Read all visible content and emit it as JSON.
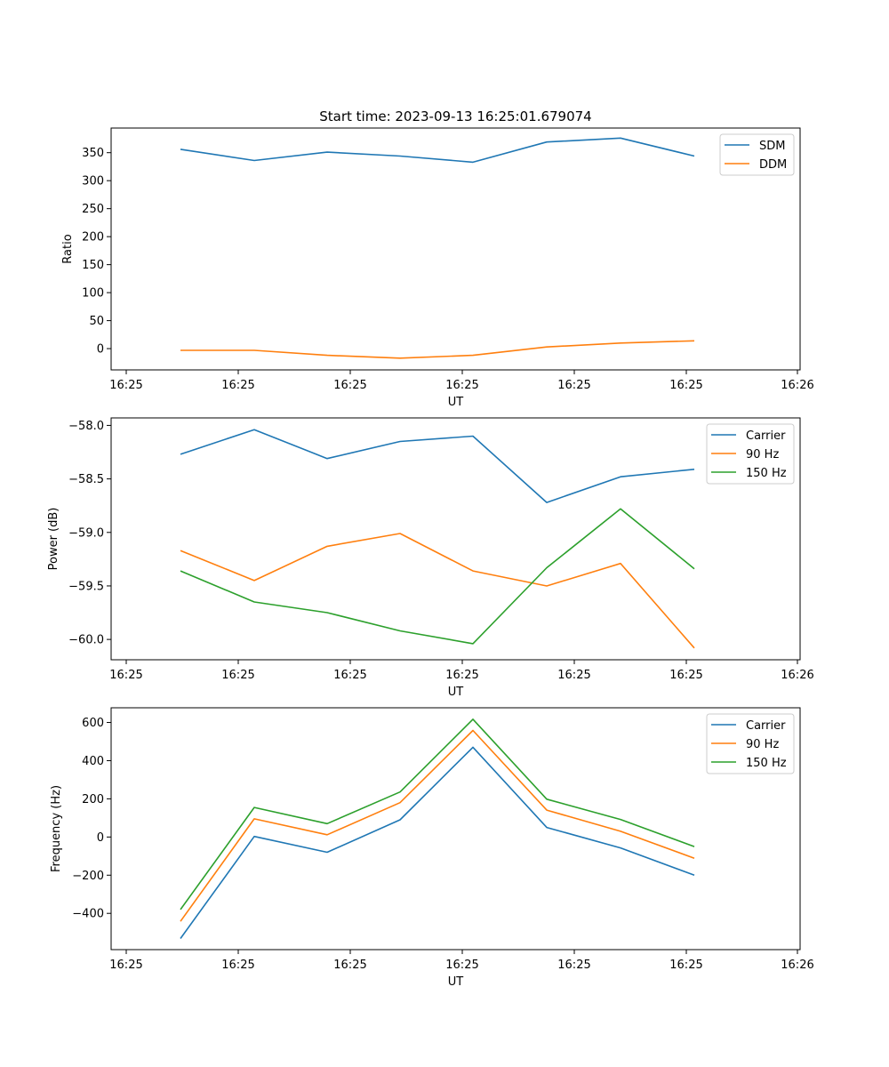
{
  "chart_data": [
    {
      "type": "line",
      "title": "Start time: 2023-09-13 16:25:01.679074",
      "xlabel": "UT",
      "ylabel": "Ratio",
      "x_tick_labels": [
        "16:25",
        "16:25",
        "16:25",
        "16:25",
        "16:25",
        "16:25",
        "16:25"
      ],
      "x_end_tick_label": "16:26",
      "yticks": [
        0,
        50,
        100,
        150,
        200,
        250,
        300,
        350
      ],
      "ylim": [
        -38,
        394
      ],
      "legend": "top-right",
      "series": [
        {
          "name": "SDM",
          "color": "#1f77b4",
          "values": [
            356,
            336,
            351,
            344,
            333,
            369,
            376,
            344
          ]
        },
        {
          "name": "DDM",
          "color": "#ff7f0e",
          "values": [
            -3,
            -3,
            -12,
            -17,
            -12,
            3,
            10,
            14
          ]
        }
      ]
    },
    {
      "type": "line",
      "title": "",
      "xlabel": "UT",
      "ylabel": "Power (dB)",
      "x_tick_labels": [
        "16:25",
        "16:25",
        "16:25",
        "16:25",
        "16:25",
        "16:25",
        "16:25"
      ],
      "x_end_tick_label": "16:26",
      "yticks": [
        -60.0,
        -59.5,
        -59.0,
        -58.5,
        -58.0
      ],
      "ytick_labels": [
        "−60.0",
        "−59.5",
        "−59.0",
        "−58.5",
        "−58.0"
      ],
      "ylim": [
        -60.19,
        -57.93
      ],
      "legend": "top-right",
      "series": [
        {
          "name": "Carrier",
          "color": "#1f77b4",
          "values": [
            -58.27,
            -58.04,
            -58.31,
            -58.15,
            -58.1,
            -58.72,
            -58.48,
            -58.41
          ]
        },
        {
          "name": "90 Hz",
          "color": "#ff7f0e",
          "values": [
            -59.17,
            -59.45,
            -59.13,
            -59.01,
            -59.36,
            -59.5,
            -59.29,
            -60.08
          ]
        },
        {
          "name": "150 Hz",
          "color": "#2ca02c",
          "values": [
            -59.36,
            -59.65,
            -59.75,
            -59.92,
            -60.04,
            -59.33,
            -58.78,
            -59.34
          ]
        }
      ]
    },
    {
      "type": "line",
      "title": "",
      "xlabel": "UT",
      "ylabel": "Frequency (Hz)",
      "x_tick_labels": [
        "16:25",
        "16:25",
        "16:25",
        "16:25",
        "16:25",
        "16:25",
        "16:25"
      ],
      "x_end_tick_label": "16:26",
      "yticks": [
        -400,
        -200,
        0,
        200,
        400,
        600
      ],
      "ytick_labels": [
        "−400",
        "−200",
        "0",
        "200",
        "400",
        "600"
      ],
      "ylim": [
        -590,
        677
      ],
      "legend": "top-right",
      "series": [
        {
          "name": "Carrier",
          "color": "#1f77b4",
          "values": [
            -532,
            3,
            -80,
            90,
            470,
            50,
            -57,
            -200
          ]
        },
        {
          "name": "90 Hz",
          "color": "#ff7f0e",
          "values": [
            -442,
            95,
            12,
            180,
            558,
            141,
            30,
            -111
          ]
        },
        {
          "name": "150 Hz",
          "color": "#2ca02c",
          "values": [
            -380,
            155,
            70,
            236,
            617,
            198,
            92,
            -50
          ]
        }
      ]
    }
  ]
}
